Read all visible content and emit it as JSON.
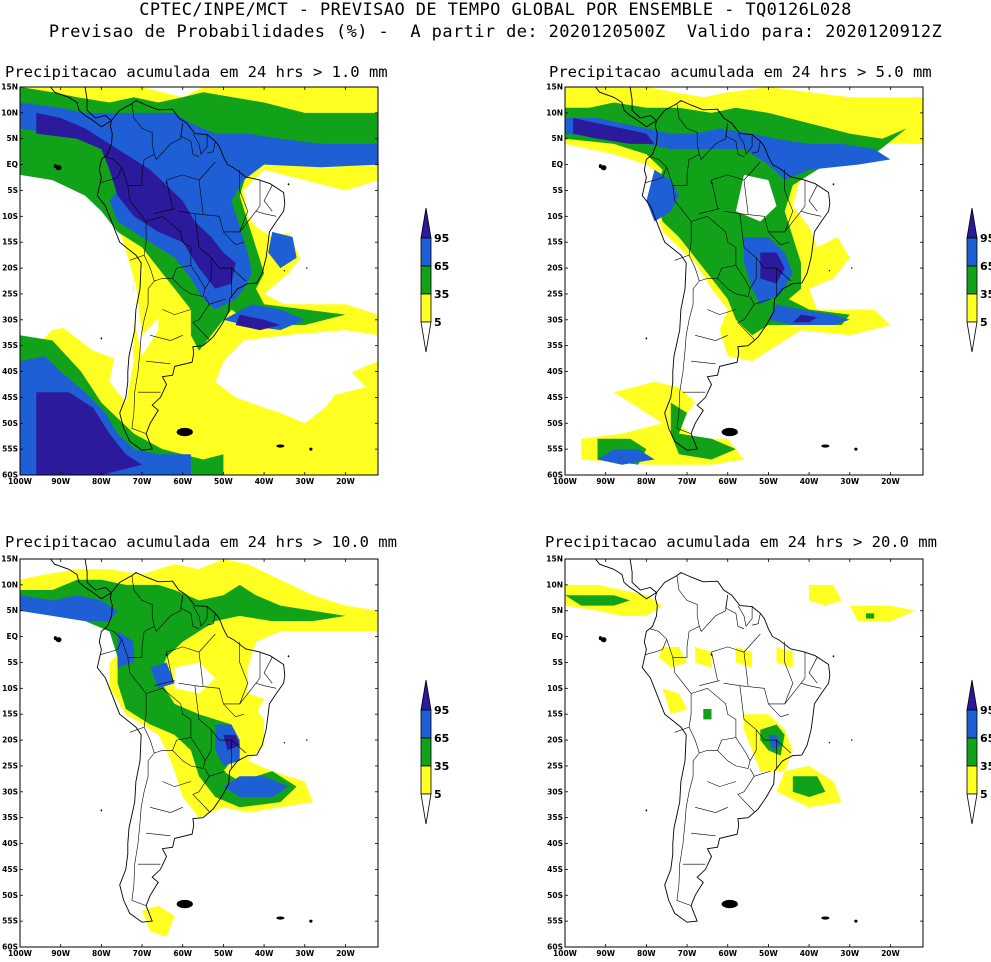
{
  "header": {
    "line1": "CPTEC/INPE/MCT - PREVISAO DE TEMPO GLOBAL POR ENSEMBLE - TQ0126L028",
    "line2": "Previsao de Probabilidades (%) -  A partir de: 2020120500Z  Valido para: 2020120912Z"
  },
  "lat_labels": [
    "15N",
    "10N",
    "5N",
    "EQ",
    "5S",
    "10S",
    "15S",
    "20S",
    "25S",
    "30S",
    "35S",
    "40S",
    "45S",
    "50S",
    "55S",
    "60S"
  ],
  "lon_labels": [
    "100W",
    "90W",
    "80W",
    "70W",
    "60W",
    "50W",
    "40W",
    "30W",
    "20W"
  ],
  "colorbar": {
    "labels": [
      "95",
      "65",
      "35",
      "5"
    ],
    "colors": {
      "c95": "#2b1a9c",
      "c65": "#1f5fd6",
      "c35": "#11a21a",
      "c5": "#ffff22",
      "none": "#ffffff"
    }
  },
  "panels": [
    {
      "title": "Precipitacao acumulada em 24 hrs > 1.0 mm"
    },
    {
      "title": "Precipitacao acumulada em 24 hrs > 5.0 mm"
    },
    {
      "title": "Precipitacao acumulada em 24 hrs > 10.0 mm"
    },
    {
      "title": "Precipitacao acumulada em 24 hrs > 20.0 mm"
    }
  ]
}
